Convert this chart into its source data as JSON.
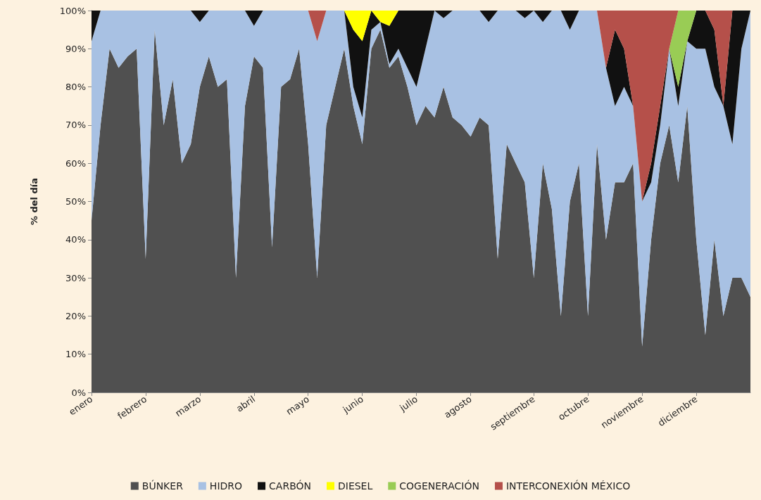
{
  "chart_data": {
    "type": "area",
    "stacked": true,
    "ylabel": "% del día",
    "marker": "none",
    "legend": "bottom",
    "categories": [
      "enero",
      null,
      null,
      null,
      null,
      null,
      "febrero",
      null,
      null,
      null,
      null,
      null,
      "marzo",
      null,
      null,
      null,
      null,
      null,
      "abril",
      null,
      null,
      null,
      null,
      null,
      "mayo",
      null,
      null,
      null,
      null,
      null,
      "junio",
      null,
      null,
      null,
      null,
      null,
      "julio",
      null,
      null,
      null,
      null,
      null,
      "agosto",
      null,
      null,
      null,
      null,
      null,
      null,
      "septiembre",
      null,
      null,
      null,
      null,
      null,
      "octubre",
      null,
      null,
      null,
      null,
      null,
      "noviembre",
      null,
      null,
      null,
      null,
      null,
      "diciembre",
      null,
      null,
      null,
      null,
      null,
      null
    ],
    "ylim": [
      0,
      100
    ],
    "yticks": [
      {
        "value": 0,
        "label": "0%"
      },
      {
        "value": 10,
        "label": "10%"
      },
      {
        "value": 20,
        "label": "20%"
      },
      {
        "value": 30,
        "label": "30%"
      },
      {
        "value": 40,
        "label": "40%"
      },
      {
        "value": 50,
        "label": "50%"
      },
      {
        "value": 60,
        "label": "60%"
      },
      {
        "value": 70,
        "label": "70%"
      },
      {
        "value": 80,
        "label": "80%"
      },
      {
        "value": 90,
        "label": "90%"
      },
      {
        "value": 100,
        "label": "100%"
      }
    ],
    "series": [
      {
        "name": "BÚNKER",
        "color": "#505050",
        "values": [
          45,
          70,
          90,
          85,
          88,
          90,
          35,
          95,
          70,
          82,
          60,
          65,
          80,
          88,
          80,
          82,
          30,
          75,
          88,
          85,
          38,
          80,
          82,
          90,
          65,
          30,
          70,
          80,
          90,
          75,
          65,
          90,
          95,
          85,
          88,
          80,
          70,
          75,
          72,
          80,
          72,
          70,
          67,
          72,
          70,
          35,
          65,
          60,
          55,
          30,
          60,
          48,
          20,
          50,
          60,
          20,
          65,
          40,
          55,
          55,
          60,
          12,
          40,
          60,
          70,
          55,
          75,
          40,
          15,
          40,
          20,
          30,
          30,
          25
        ]
      },
      {
        "name": "HIDRO",
        "color": "#a8c1e3",
        "values": [
          47,
          30,
          10,
          15,
          12,
          10,
          65,
          5,
          30,
          18,
          40,
          35,
          17,
          12,
          20,
          18,
          70,
          25,
          8,
          15,
          62,
          20,
          18,
          10,
          35,
          62,
          30,
          20,
          10,
          5,
          7,
          5,
          2,
          1,
          2,
          5,
          10,
          15,
          28,
          18,
          28,
          30,
          33,
          28,
          27,
          65,
          35,
          40,
          43,
          70,
          37,
          52,
          80,
          45,
          40,
          80,
          35,
          45,
          20,
          25,
          15,
          38,
          15,
          10,
          20,
          20,
          17,
          50,
          75,
          40,
          55,
          35,
          60,
          75
        ]
      },
      {
        "name": "CARBÓN",
        "color": "#111111",
        "values": [
          8,
          0,
          0,
          0,
          0,
          0,
          0,
          0,
          0,
          0,
          0,
          0,
          3,
          0,
          0,
          0,
          0,
          0,
          4,
          0,
          0,
          0,
          0,
          0,
          0,
          0,
          0,
          0,
          0,
          15,
          20,
          5,
          0,
          10,
          10,
          15,
          20,
          10,
          0,
          2,
          0,
          0,
          0,
          0,
          3,
          0,
          0,
          0,
          2,
          0,
          3,
          0,
          0,
          5,
          0,
          0,
          0,
          0,
          20,
          10,
          0,
          0,
          5,
          5,
          0,
          5,
          0,
          10,
          10,
          15,
          0,
          35,
          10,
          0
        ]
      },
      {
        "name": "DIESEL",
        "color": "#ffff00",
        "values": [
          null,
          null,
          null,
          null,
          null,
          null,
          null,
          null,
          null,
          null,
          null,
          null,
          null,
          null,
          null,
          null,
          null,
          null,
          null,
          null,
          null,
          null,
          null,
          null,
          null,
          null,
          null,
          null,
          0,
          5,
          8,
          0,
          3,
          4,
          0,
          null,
          null,
          null,
          null,
          null,
          null,
          null,
          null,
          null,
          null,
          null,
          null,
          null,
          null,
          null,
          null,
          null,
          null,
          null,
          null,
          null,
          null,
          null,
          null,
          null,
          null,
          null,
          null,
          null,
          null,
          null,
          null,
          null,
          null,
          null,
          null,
          null,
          null,
          null
        ]
      },
      {
        "name": "COGENERACIÓN",
        "color": "#99cc55",
        "values": [
          null,
          null,
          null,
          null,
          null,
          null,
          null,
          null,
          null,
          null,
          null,
          null,
          null,
          null,
          null,
          null,
          null,
          null,
          null,
          null,
          null,
          null,
          null,
          null,
          null,
          null,
          null,
          null,
          null,
          null,
          null,
          null,
          null,
          null,
          null,
          null,
          null,
          null,
          null,
          null,
          null,
          null,
          null,
          null,
          null,
          null,
          null,
          null,
          null,
          null,
          null,
          null,
          null,
          null,
          null,
          null,
          null,
          null,
          null,
          null,
          null,
          null,
          null,
          null,
          0,
          20,
          8,
          0,
          null,
          null,
          null,
          null,
          null,
          null
        ]
      },
      {
        "name": "INTERCONEXIÓN MÉXICO",
        "color": "#b5504a",
        "values": [
          null,
          null,
          null,
          null,
          null,
          null,
          null,
          null,
          null,
          null,
          null,
          null,
          null,
          null,
          null,
          null,
          null,
          null,
          null,
          null,
          null,
          null,
          null,
          null,
          0,
          8,
          0,
          null,
          null,
          null,
          null,
          null,
          null,
          null,
          null,
          null,
          null,
          null,
          null,
          null,
          null,
          null,
          null,
          null,
          null,
          null,
          null,
          null,
          null,
          null,
          null,
          null,
          null,
          null,
          null,
          null,
          0,
          15,
          5,
          10,
          25,
          50,
          40,
          25,
          10,
          0,
          0,
          0,
          0,
          5,
          25,
          0,
          null,
          null
        ]
      }
    ]
  }
}
